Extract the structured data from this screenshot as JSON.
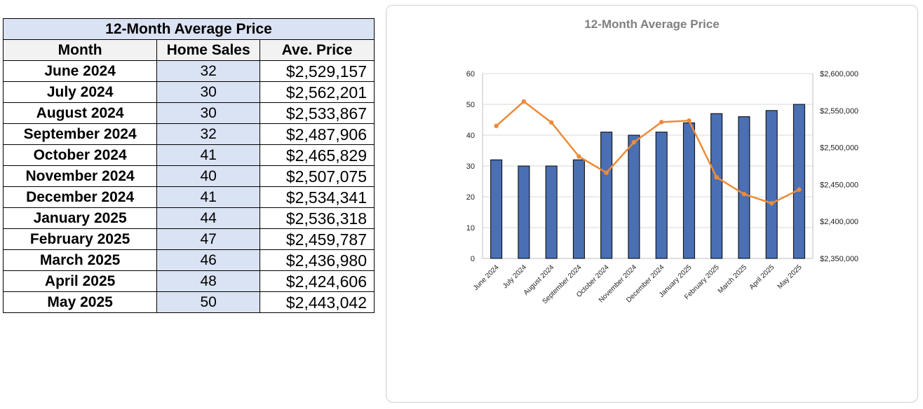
{
  "table": {
    "title": "12-Month Average Price",
    "headers": [
      "Month",
      "Home Sales",
      "Ave. Price"
    ],
    "rows": [
      {
        "month": "June 2024",
        "sales": "32",
        "price": "$2,529,157"
      },
      {
        "month": "July 2024",
        "sales": "30",
        "price": "$2,562,201"
      },
      {
        "month": "August 2024",
        "sales": "30",
        "price": "$2,533,867"
      },
      {
        "month": "September 2024",
        "sales": "32",
        "price": "$2,487,906"
      },
      {
        "month": "October 2024",
        "sales": "41",
        "price": "$2,465,829"
      },
      {
        "month": "November 2024",
        "sales": "40",
        "price": "$2,507,075"
      },
      {
        "month": "December 2024",
        "sales": "41",
        "price": "$2,534,341"
      },
      {
        "month": "January 2025",
        "sales": "44",
        "price": "$2,536,318"
      },
      {
        "month": "February 2025",
        "sales": "47",
        "price": "$2,459,787"
      },
      {
        "month": "March 2025",
        "sales": "46",
        "price": "$2,436,980"
      },
      {
        "month": "April 2025",
        "sales": "48",
        "price": "$2,424,606"
      },
      {
        "month": "May 2025",
        "sales": "50",
        "price": "$2,443,042"
      }
    ]
  },
  "chart_data": {
    "type": "bar",
    "title": "12-Month Average Price",
    "categories": [
      "June 2024",
      "July 2024",
      "August 2024",
      "September 2024",
      "October 2024",
      "November 2024",
      "December 2024",
      "January 2025",
      "February 2025",
      "March 2025",
      "April 2025",
      "May 2025"
    ],
    "series": [
      {
        "type": "bar",
        "axis": "left",
        "color": "#4a6fb3",
        "values": [
          32,
          30,
          30,
          32,
          41,
          40,
          41,
          44,
          47,
          46,
          48,
          50
        ]
      },
      {
        "type": "line",
        "axis": "right",
        "color": "#ed8b3a",
        "values": [
          2529157,
          2562201,
          2533867,
          2487906,
          2465829,
          2507075,
          2534341,
          2536318,
          2459787,
          2436980,
          2424606,
          2443042
        ]
      }
    ],
    "y_left": {
      "min": 0,
      "max": 60,
      "ticks": [
        "0",
        "10",
        "20",
        "30",
        "40",
        "50",
        "60"
      ]
    },
    "y_right": {
      "min": 2350000,
      "max": 2600000,
      "ticks": [
        "$2,350,000",
        "$2,400,000",
        "$2,450,000",
        "$2,500,000",
        "$2,550,000",
        "$2,600,000"
      ]
    },
    "grid": true,
    "legend": "none"
  }
}
